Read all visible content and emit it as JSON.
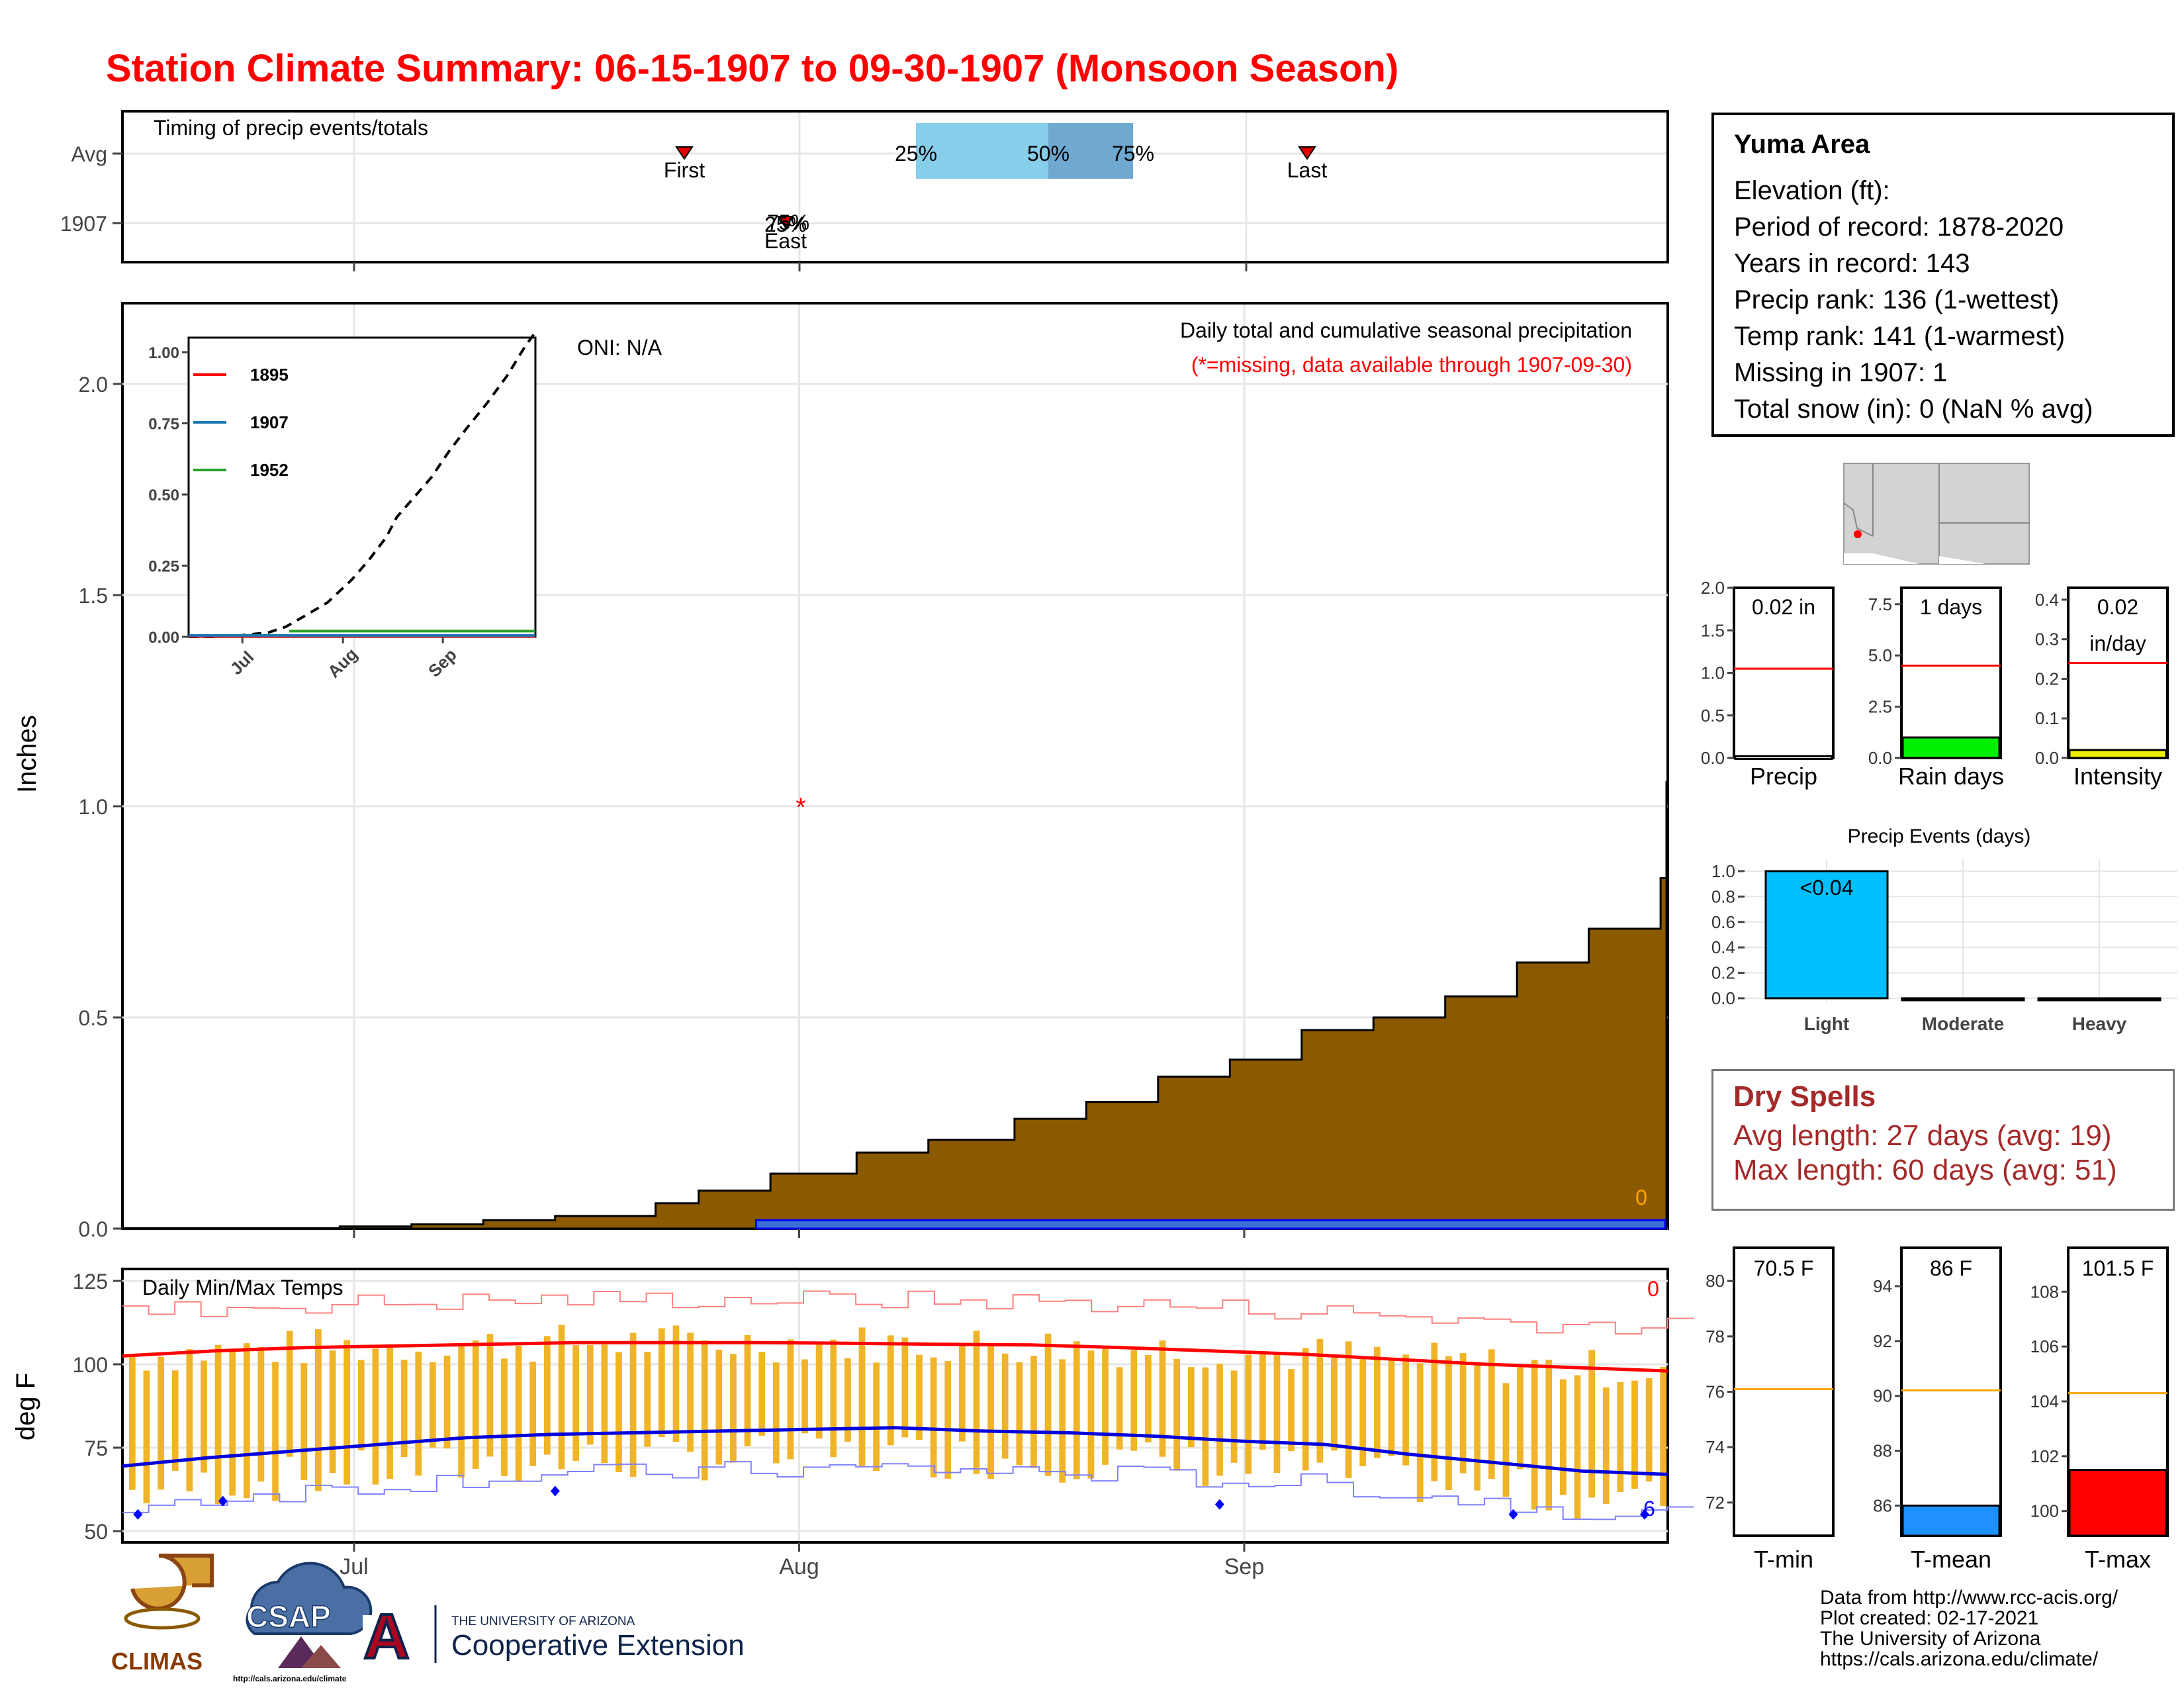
{
  "title": "Station Climate Summary: 06-15-1907 to 09-30-1907 (Monsoon Season)",
  "timing_panel": {
    "label": "Timing of precip events/totals",
    "row_labels": [
      "Avg",
      "1907"
    ],
    "first_label": "First",
    "last_label": "Last",
    "pct_labels": [
      "25%",
      "50%",
      "75%"
    ],
    "year_overlap_text": "25%",
    "year_overlap_text2": "75%",
    "year_first_last": "East"
  },
  "precip_panel": {
    "ylabel": "Inches",
    "oni": "ONI: N/A",
    "caption": "Daily total and cumulative seasonal precipitation",
    "missing_note": "(*=missing, data available through 1907-09-30)",
    "count_label": "0"
  },
  "temp_panel": {
    "label": "Daily Min/Max Temps",
    "ylabel": "deg F",
    "top_count": "0",
    "bottom_count": "6"
  },
  "station": {
    "name": "Yuma Area",
    "lines": [
      "Elevation (ft):",
      "Period of record: 1878-2020",
      "Years in record: 143",
      "Precip rank: 136 (1-wettest)",
      "Temp rank: 141 (1-warmest)",
      "Missing in 1907: 1",
      "Total snow (in): 0 (NaN % avg)"
    ]
  },
  "mini_bars": [
    {
      "label": "Precip",
      "value_text": "0.02 in",
      "ticks": [
        "0.0",
        "0.5",
        "1.0",
        "1.5",
        "2.0"
      ],
      "max": 2.0,
      "avg": 1.05,
      "value": 0.02,
      "color": "#ffffff"
    },
    {
      "label": "Rain days",
      "value_text": "1 days",
      "ticks": [
        "0.0",
        "2.5",
        "5.0",
        "7.5"
      ],
      "max": 8.3,
      "avg": 4.5,
      "value": 1,
      "color": "#00ee00"
    },
    {
      "label": "Intensity",
      "value_text": "0.02",
      "value_text2": "in/day",
      "ticks": [
        "0.0",
        "0.1",
        "0.2",
        "0.3",
        "0.4"
      ],
      "max": 0.43,
      "avg": 0.24,
      "value": 0.02,
      "color": "#eeee00"
    }
  ],
  "precip_events": {
    "title": "Precip Events (days)",
    "categories": [
      "Light",
      "Moderate",
      "Heavy"
    ],
    "values": [
      1,
      0,
      0
    ],
    "bar_label": "<0.04",
    "ticks": [
      "0.0",
      "0.2",
      "0.4",
      "0.6",
      "0.8",
      "1.0"
    ],
    "color": "#00bfff"
  },
  "dry_spells": {
    "title": "Dry Spells",
    "avg_line": "Avg length: 27 days (avg: 19)",
    "max_line": "Max length: 60 days (avg: 51)"
  },
  "temp_bars": [
    {
      "label": "T-min",
      "value_text": "70.5 F",
      "ticks": [
        "72",
        "74",
        "76",
        "78",
        "80"
      ],
      "min": 70.8,
      "max": 81.2,
      "avg": 76.1,
      "value": 70.5,
      "color": "#ffffff"
    },
    {
      "label": "T-mean",
      "value_text": "86 F",
      "ticks": [
        "86",
        "88",
        "90",
        "92",
        "94"
      ],
      "min": 84.9,
      "max": 95.4,
      "avg": 90.2,
      "value": 86,
      "color": "#1e90ff"
    },
    {
      "label": "T-max",
      "value_text": "101.5 F",
      "ticks": [
        "100",
        "102",
        "104",
        "106",
        "108"
      ],
      "min": 99.1,
      "max": 109.6,
      "avg": 104.3,
      "value": 101.5,
      "color": "#ff0000"
    }
  ],
  "footer": [
    "Data from http://www.rcc-acis.org/",
    "Plot created: 02-17-2021",
    "The University of Arizona",
    "https://cals.arizona.edu/climate/"
  ],
  "logos": {
    "climas": "CLIMAS",
    "csap": "CSAP",
    "csap_url": "http://cals.arizona.edu/climate",
    "ua_letter": "A",
    "ua_line1": "THE UNIVERSITY OF ARIZONA",
    "ua_line2": "Cooperative Extension"
  },
  "chart_data": [
    {
      "type": "area",
      "title": "Daily total and cumulative seasonal precipitation",
      "ylabel": "Inches",
      "x_ticks": [
        "Jul",
        "Aug",
        "Sep"
      ],
      "y_ticks": [
        "0.0",
        "0.5",
        "1.0",
        "1.5",
        "2.0"
      ],
      "ylim": [
        0,
        2.2
      ],
      "xlim_dates": [
        "1907-06-15",
        "1907-09-30"
      ],
      "series": [
        {
          "name": "avg cumulative",
          "color": "#8b5a00",
          "points": [
            [
              "1907-06-15",
              0
            ],
            [
              "1907-06-20",
              0.0
            ],
            [
              "1907-06-30",
              0.005
            ],
            [
              "1907-07-05",
              0.01
            ],
            [
              "1907-07-10",
              0.02
            ],
            [
              "1907-07-15",
              0.03
            ],
            [
              "1907-07-22",
              0.06
            ],
            [
              "1907-07-25",
              0.09
            ],
            [
              "1907-07-30",
              0.13
            ],
            [
              "1907-08-05",
              0.18
            ],
            [
              "1907-08-10",
              0.21
            ],
            [
              "1907-08-16",
              0.26
            ],
            [
              "1907-08-21",
              0.3
            ],
            [
              "1907-08-26",
              0.36
            ],
            [
              "1907-08-31",
              0.4
            ],
            [
              "1907-09-05",
              0.47
            ],
            [
              "1907-09-10",
              0.5
            ],
            [
              "1907-09-15",
              0.55
            ],
            [
              "1907-09-20",
              0.63
            ],
            [
              "1907-09-25",
              0.71
            ],
            [
              "1907-09-30",
              0.83
            ],
            [
              "1907-10-05",
              0.89
            ],
            [
              "1907-10-10",
              0.95
            ],
            [
              "1907-10-15",
              1.01
            ],
            [
              "1907-10-20",
              1.04
            ],
            [
              "1907-10-24",
              1.06
            ]
          ]
        },
        {
          "name": "1907 cumulative",
          "color": "#0000ff",
          "points": [
            [
              "1907-07-29",
              0.02
            ],
            [
              "1907-09-30",
              0.02
            ]
          ]
        }
      ],
      "missing_points": [
        [
          "1907-07-31",
          1.0
        ]
      ]
    },
    {
      "type": "line",
      "title": "",
      "x_ticks": [
        "Jul",
        "Aug",
        "Sep"
      ],
      "y_ticks": [
        "0.00",
        "0.25",
        "0.50",
        "0.75",
        "1.00"
      ],
      "legend": [
        "1895",
        "1907",
        "1952"
      ],
      "series": [
        {
          "name": "1895",
          "color": "#ff0000"
        },
        {
          "name": "1907",
          "color": "#1f77b4"
        },
        {
          "name": "1952",
          "color": "#2ca02c"
        }
      ]
    },
    {
      "type": "bar",
      "title": "Daily Min/Max Temps",
      "ylabel": "deg F",
      "x_ticks": [
        "Jul",
        "Aug",
        "Sep"
      ],
      "y_ticks": [
        "50",
        "75",
        "100",
        "125"
      ],
      "ylim": [
        46,
        127
      ],
      "avg_max_series": [
        102.5,
        104,
        105,
        105.5,
        106,
        106.5,
        106.5,
        106.5,
        106.3,
        106,
        105.8,
        105,
        104,
        103,
        101.5,
        100,
        99,
        98
      ],
      "avg_min_series": [
        69.5,
        72,
        74,
        76,
        78,
        79,
        79.5,
        80,
        80.5,
        81,
        80,
        79.5,
        78.5,
        77,
        76,
        73,
        70.5,
        68,
        67
      ]
    }
  ]
}
